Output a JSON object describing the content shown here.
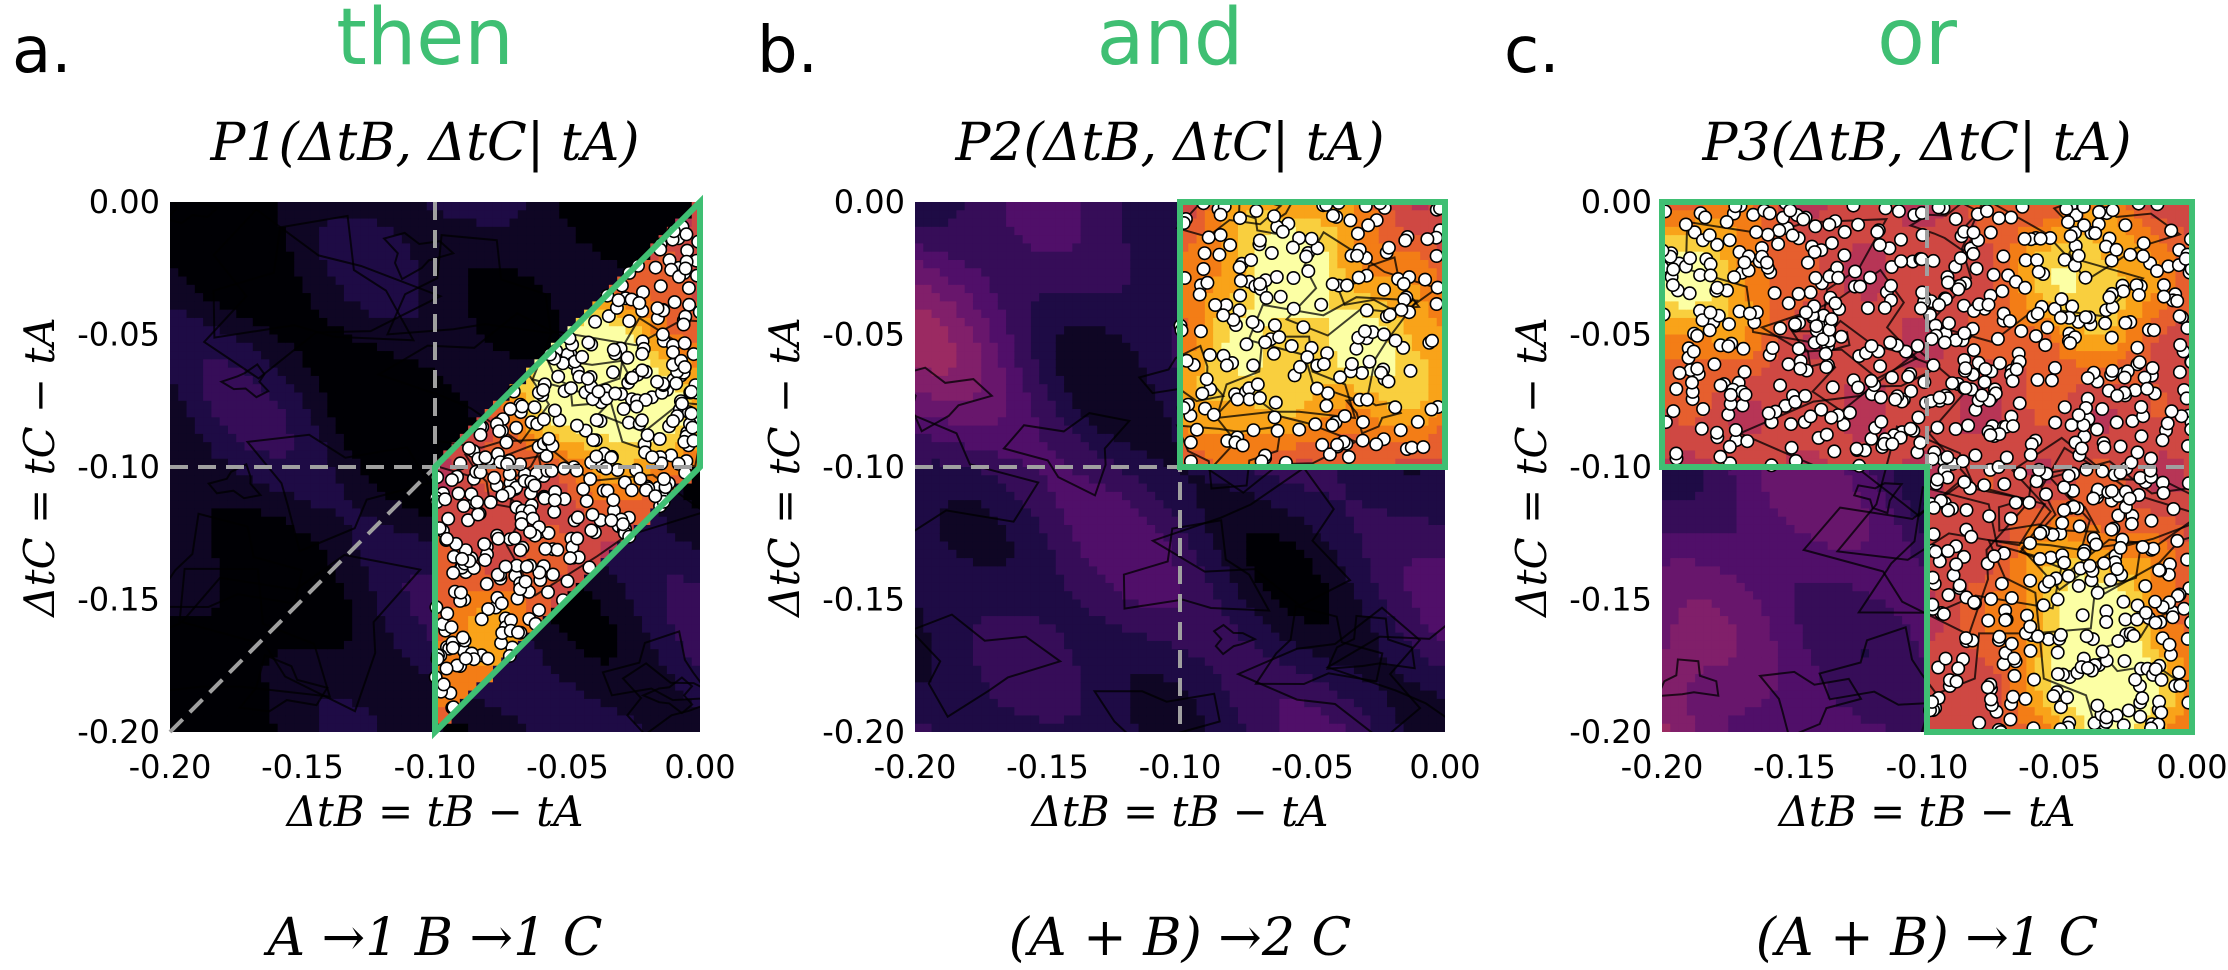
{
  "figure": {
    "accent_color": "#3fbf73",
    "colormap": "inferno",
    "guide_color": "#a0a0a0",
    "marker_color": "#ffffff"
  },
  "chart_data": [
    {
      "type": "heatmap",
      "panel_letter": "a.",
      "logic_word": "then",
      "title": "P1(ΔtB, ΔtC| tA)",
      "xlabel": "ΔtB = tB − tA",
      "ylabel": "ΔtC = tC − tA",
      "formula": "A →1 B →1 C",
      "x_range": [
        -0.2,
        0.0
      ],
      "y_range": [
        -0.2,
        0.0
      ],
      "x_ticks": [
        "-0.20",
        "-0.15",
        "-0.10",
        "-0.05",
        "0.00"
      ],
      "y_ticks": [
        "0.00",
        "-0.05",
        "-0.10",
        "-0.15",
        "-0.20"
      ],
      "contour_lines": true,
      "guide_lines": {
        "x": -0.1,
        "y": -0.1,
        "diagonal": true
      },
      "highlight_region": [
        [
          -0.1,
          -0.2
        ],
        [
          0.0,
          -0.1
        ],
        [
          0.0,
          0.0
        ],
        [
          -0.1,
          -0.1
        ]
      ],
      "scatter": "dense white points filling highlighted region",
      "density_peaks": [
        {
          "x": -0.05,
          "y": -0.06,
          "intensity": 1.0
        },
        {
          "x": -0.02,
          "y": -0.08,
          "intensity": 0.85
        },
        {
          "x": -0.08,
          "y": -0.17,
          "intensity": 0.6
        }
      ]
    },
    {
      "type": "heatmap",
      "panel_letter": "b.",
      "logic_word": "and",
      "title": "P2(ΔtB, ΔtC| tA)",
      "xlabel": "ΔtB = tB − tA",
      "ylabel": "ΔtC = tC − tA",
      "formula": "(A + B) →2 C",
      "x_range": [
        -0.2,
        0.0
      ],
      "y_range": [
        -0.2,
        0.0
      ],
      "x_ticks": [
        "-0.20",
        "-0.15",
        "-0.10",
        "-0.05",
        "0.00"
      ],
      "y_ticks": [
        "0.00",
        "-0.05",
        "-0.10",
        "-0.15",
        "-0.20"
      ],
      "contour_lines": true,
      "guide_lines": {
        "x": -0.1,
        "y": -0.1,
        "diagonal": false
      },
      "highlight_region": [
        [
          -0.1,
          -0.1
        ],
        [
          0.0,
          -0.1
        ],
        [
          0.0,
          0.0
        ],
        [
          -0.1,
          0.0
        ]
      ],
      "scatter": "dense white points filling highlighted region",
      "density_peaks": [
        {
          "x": -0.06,
          "y": -0.02,
          "intensity": 1.0
        },
        {
          "x": -0.02,
          "y": -0.06,
          "intensity": 0.9
        },
        {
          "x": -0.08,
          "y": -0.07,
          "intensity": 0.8
        }
      ]
    },
    {
      "type": "heatmap",
      "panel_letter": "c.",
      "logic_word": "or",
      "title": "P3(ΔtB, ΔtC| tA)",
      "xlabel": "ΔtB = tB − tA",
      "ylabel": "ΔtC = tC − tA",
      "formula": "(A + B) →1 C",
      "x_range": [
        -0.2,
        0.0
      ],
      "y_range": [
        -0.2,
        0.0
      ],
      "x_ticks": [
        "-0.20",
        "-0.15",
        "-0.10",
        "-0.05",
        "0.00"
      ],
      "y_ticks": [
        "0.00",
        "-0.05",
        "-0.10",
        "-0.15",
        "-0.20"
      ],
      "contour_lines": true,
      "guide_lines": {
        "x": -0.1,
        "y": -0.1,
        "diagonal": false
      },
      "highlight_region": [
        [
          -0.2,
          0.0
        ],
        [
          0.0,
          0.0
        ],
        [
          0.0,
          -0.2
        ],
        [
          -0.1,
          -0.2
        ],
        [
          -0.1,
          -0.1
        ],
        [
          -0.2,
          -0.1
        ]
      ],
      "scatter": "dense white points filling highlighted region",
      "density_peaks": [
        {
          "x": -0.19,
          "y": -0.03,
          "intensity": 1.0
        },
        {
          "x": -0.04,
          "y": -0.03,
          "intensity": 0.95
        },
        {
          "x": -0.04,
          "y": -0.15,
          "intensity": 0.9
        },
        {
          "x": -0.03,
          "y": -0.19,
          "intensity": 0.95
        }
      ]
    }
  ]
}
